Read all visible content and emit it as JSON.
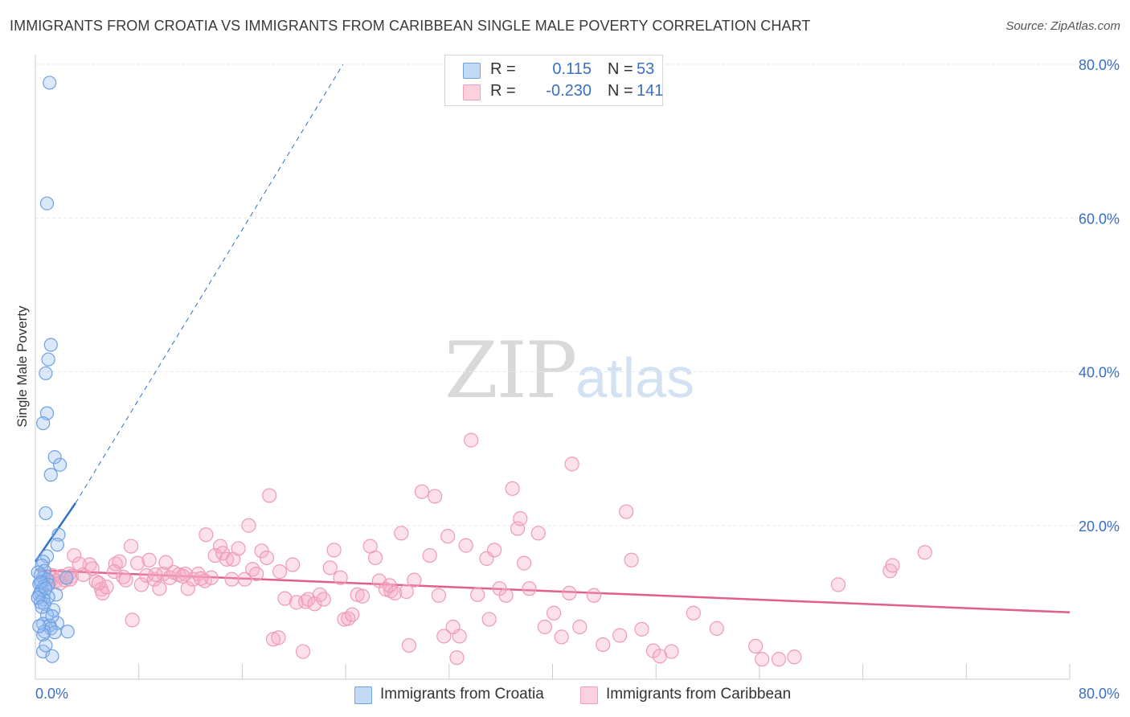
{
  "title": "IMMIGRANTS FROM CROATIA VS IMMIGRANTS FROM CARIBBEAN SINGLE MALE POVERTY CORRELATION CHART",
  "source": "Source: ZipAtlas.com",
  "watermark": {
    "zip": "ZIP",
    "atlas": "atlas"
  },
  "colors": {
    "croatia": "#6fa0e0",
    "croatia_line": "#2f6fc8",
    "caribbean": "#f0a0b8",
    "caribbean_line": "#e0608a",
    "tick_text": "#3b6fc4"
  },
  "legend": {
    "croatia": {
      "r_label": "R =",
      "r_value": "0.115",
      "n_label": "N =",
      "n_value": "53"
    },
    "caribbean": {
      "r_label": "R =",
      "r_value": "-0.230",
      "n_label": "N =",
      "n_value": "141"
    }
  },
  "bottom_legend": {
    "croatia": "Immigrants from Croatia",
    "caribbean": "Immigrants from Caribbean"
  },
  "chart_data": {
    "type": "scatter",
    "title": "IMMIGRANTS FROM CROATIA VS IMMIGRANTS FROM CARIBBEAN SINGLE MALE POVERTY CORRELATION CHART",
    "xlabel": "",
    "ylabel": "Single Male Poverty",
    "xlim": [
      0,
      80
    ],
    "ylim": [
      0,
      80
    ],
    "x_tick_labels": [
      "0.0%",
      "80.0%"
    ],
    "y_tick_labels": [
      "20.0%",
      "40.0%",
      "60.0%",
      "80.0%"
    ],
    "y_ticks": [
      20,
      40,
      60,
      80
    ],
    "grid": true,
    "legend_position": "top-center",
    "series": [
      {
        "name": "Immigrants from Croatia",
        "r": 0.115,
        "n": 53,
        "trend": {
          "x0": 0.0,
          "y0": 15.3,
          "x1": 3.1,
          "y1": 22.9,
          "dashed_to_x": 23.8,
          "dashed_to_y": 80.0
        },
        "points": [
          [
            1.1,
            77.6
          ],
          [
            0.9,
            61.9
          ],
          [
            1.2,
            43.5
          ],
          [
            1.0,
            41.6
          ],
          [
            0.8,
            39.8
          ],
          [
            0.9,
            34.6
          ],
          [
            0.6,
            33.3
          ],
          [
            1.5,
            28.9
          ],
          [
            1.9,
            27.9
          ],
          [
            1.2,
            26.6
          ],
          [
            0.8,
            21.6
          ],
          [
            1.8,
            18.8
          ],
          [
            1.7,
            17.5
          ],
          [
            0.9,
            16.0
          ],
          [
            0.6,
            15.3
          ],
          [
            0.5,
            14.8
          ],
          [
            0.7,
            14.1
          ],
          [
            0.4,
            13.6
          ],
          [
            0.6,
            13.2
          ],
          [
            0.9,
            13.0
          ],
          [
            0.5,
            12.7
          ],
          [
            0.3,
            12.4
          ],
          [
            0.7,
            12.1
          ],
          [
            1.0,
            12.3
          ],
          [
            0.5,
            11.6
          ],
          [
            0.4,
            11.3
          ],
          [
            0.3,
            11.0
          ],
          [
            1.6,
            11.0
          ],
          [
            1.0,
            10.7
          ],
          [
            0.6,
            10.4
          ],
          [
            0.4,
            10.0
          ],
          [
            0.7,
            9.8
          ],
          [
            1.4,
            9.0
          ],
          [
            0.9,
            8.4
          ],
          [
            1.7,
            7.3
          ],
          [
            0.6,
            7.2
          ],
          [
            1.1,
            7.0
          ],
          [
            1.2,
            6.6
          ],
          [
            0.7,
            6.2
          ],
          [
            2.5,
            6.2
          ],
          [
            0.6,
            5.8
          ],
          [
            0.6,
            3.6
          ],
          [
            1.3,
            3.0
          ],
          [
            2.4,
            13.2
          ],
          [
            0.2,
            13.9
          ],
          [
            0.4,
            12.6
          ],
          [
            0.8,
            11.8
          ],
          [
            0.2,
            10.6
          ],
          [
            0.5,
            9.4
          ],
          [
            1.3,
            8.2
          ],
          [
            0.3,
            6.9
          ],
          [
            1.5,
            6.1
          ],
          [
            0.8,
            4.4
          ]
        ]
      },
      {
        "name": "Immigrants from Caribbean",
        "r": -0.23,
        "n": 141,
        "trend": {
          "x0": 0.0,
          "y0": 14.2,
          "x1": 80.0,
          "y1": 8.7
        },
        "points": [
          [
            1.3,
            13.1
          ],
          [
            1.1,
            12.6
          ],
          [
            1.3,
            13.5
          ],
          [
            1.6,
            12.8
          ],
          [
            2.0,
            13.4
          ],
          [
            2.3,
            12.9
          ],
          [
            2.6,
            13.7
          ],
          [
            3.0,
            16.1
          ],
          [
            2.8,
            13.4
          ],
          [
            3.7,
            13.6
          ],
          [
            4.2,
            14.9
          ],
          [
            4.4,
            14.4
          ],
          [
            4.7,
            12.7
          ],
          [
            5.1,
            11.7
          ],
          [
            5.2,
            11.2
          ],
          [
            5.5,
            12.0
          ],
          [
            6.2,
            15.0
          ],
          [
            6.5,
            15.3
          ],
          [
            6.8,
            13.3
          ],
          [
            7.0,
            12.9
          ],
          [
            7.4,
            17.3
          ],
          [
            7.5,
            7.7
          ],
          [
            7.9,
            15.1
          ],
          [
            8.2,
            12.3
          ],
          [
            8.6,
            13.5
          ],
          [
            8.8,
            15.5
          ],
          [
            9.2,
            13.0
          ],
          [
            9.6,
            11.8
          ],
          [
            9.9,
            13.7
          ],
          [
            10.1,
            15.2
          ],
          [
            10.4,
            13.2
          ],
          [
            10.7,
            13.9
          ],
          [
            11.1,
            13.6
          ],
          [
            11.6,
            13.7
          ],
          [
            11.8,
            11.8
          ],
          [
            12.2,
            13.0
          ],
          [
            12.6,
            13.7
          ],
          [
            13.1,
            12.8
          ],
          [
            13.6,
            13.2
          ],
          [
            13.2,
            18.8
          ],
          [
            13.9,
            16.1
          ],
          [
            14.3,
            17.3
          ],
          [
            14.5,
            16.4
          ],
          [
            14.8,
            15.6
          ],
          [
            15.2,
            13.0
          ],
          [
            15.3,
            15.6
          ],
          [
            15.7,
            17.0
          ],
          [
            16.2,
            13.0
          ],
          [
            16.5,
            20.0
          ],
          [
            16.8,
            14.3
          ],
          [
            17.1,
            13.7
          ],
          [
            17.5,
            16.7
          ],
          [
            17.9,
            15.8
          ],
          [
            18.1,
            23.9
          ],
          [
            18.4,
            5.2
          ],
          [
            18.8,
            5.4
          ],
          [
            18.9,
            14.0
          ],
          [
            19.3,
            10.5
          ],
          [
            19.9,
            14.9
          ],
          [
            20.2,
            10.0
          ],
          [
            20.7,
            3.6
          ],
          [
            20.9,
            10.1
          ],
          [
            21.1,
            10.4
          ],
          [
            21.6,
            9.8
          ],
          [
            22.0,
            11.0
          ],
          [
            22.3,
            10.4
          ],
          [
            22.8,
            14.5
          ],
          [
            23.1,
            16.8
          ],
          [
            23.6,
            13.2
          ],
          [
            23.9,
            7.8
          ],
          [
            24.2,
            7.9
          ],
          [
            24.5,
            8.4
          ],
          [
            24.9,
            11.0
          ],
          [
            25.3,
            10.8
          ],
          [
            25.9,
            17.3
          ],
          [
            26.3,
            15.8
          ],
          [
            26.6,
            12.8
          ],
          [
            27.1,
            11.7
          ],
          [
            27.5,
            11.5
          ],
          [
            27.8,
            11.2
          ],
          [
            28.3,
            19.0
          ],
          [
            28.7,
            11.4
          ],
          [
            28.9,
            4.4
          ],
          [
            29.3,
            12.9
          ],
          [
            29.9,
            24.4
          ],
          [
            30.5,
            16.1
          ],
          [
            30.9,
            23.8
          ],
          [
            31.2,
            10.9
          ],
          [
            31.6,
            5.6
          ],
          [
            31.9,
            18.6
          ],
          [
            32.3,
            6.8
          ],
          [
            32.6,
            2.8
          ],
          [
            32.8,
            5.6
          ],
          [
            33.3,
            17.4
          ],
          [
            33.7,
            31.1
          ],
          [
            34.2,
            11.0
          ],
          [
            34.9,
            15.7
          ],
          [
            35.1,
            7.8
          ],
          [
            35.5,
            16.8
          ],
          [
            35.9,
            11.8
          ],
          [
            36.4,
            10.9
          ],
          [
            36.9,
            24.8
          ],
          [
            37.3,
            19.6
          ],
          [
            37.5,
            20.9
          ],
          [
            37.8,
            15.1
          ],
          [
            38.2,
            11.8
          ],
          [
            38.9,
            19.0
          ],
          [
            39.4,
            6.8
          ],
          [
            40.1,
            8.6
          ],
          [
            40.7,
            5.5
          ],
          [
            41.3,
            11.2
          ],
          [
            41.5,
            28.0
          ],
          [
            42.1,
            6.8
          ],
          [
            43.2,
            10.9
          ],
          [
            43.9,
            4.5
          ],
          [
            45.2,
            5.7
          ],
          [
            45.7,
            21.8
          ],
          [
            46.1,
            15.5
          ],
          [
            46.9,
            6.5
          ],
          [
            47.8,
            3.7
          ],
          [
            48.3,
            3.0
          ],
          [
            49.2,
            3.6
          ],
          [
            50.9,
            8.6
          ],
          [
            52.7,
            6.6
          ],
          [
            55.7,
            4.3
          ],
          [
            56.2,
            2.6
          ],
          [
            57.5,
            2.6
          ],
          [
            58.7,
            2.9
          ],
          [
            62.1,
            12.3
          ],
          [
            66.1,
            14.1
          ],
          [
            66.3,
            14.8
          ],
          [
            68.8,
            16.5
          ],
          [
            27.4,
            12.2
          ],
          [
            12.8,
            13.1
          ],
          [
            11.4,
            13.4
          ],
          [
            9.3,
            13.6
          ],
          [
            6.1,
            14.0
          ],
          [
            4.9,
            12.5
          ],
          [
            3.4,
            15.0
          ],
          [
            2.7,
            13.0
          ],
          [
            1.9,
            12.5
          ]
        ]
      }
    ]
  }
}
